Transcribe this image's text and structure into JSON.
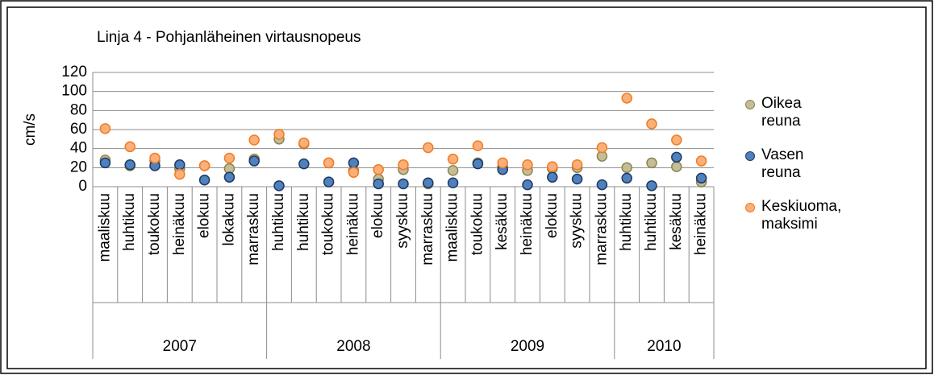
{
  "chart_data": {
    "type": "scatter",
    "title": "Linja 4 - Pohjanläheinen  virtausnopeus",
    "y_label": "cm/s",
    "categories": [
      "maaliskuu",
      "huhtikuu",
      "toukokuu",
      "heinäkuu",
      "elokuu",
      "lokakuu",
      "marraskuu",
      "huhtikuu",
      "huhtikuu",
      "toukokuu",
      "heinäkuu",
      "elokuu",
      "syyskuu",
      "marraskuu",
      "maaliskuu",
      "toukokuu",
      "kesäkuu",
      "heinäkuu",
      "elokuu",
      "syyskuu",
      "marraskuu",
      "huhtikuu",
      "huhtikuu",
      "kesäkuu",
      "heinäkuu"
    ],
    "category_groups": [
      {
        "label": "2007",
        "span": 7
      },
      {
        "label": "2008",
        "span": 7
      },
      {
        "label": "2009",
        "span": 7
      },
      {
        "label": "2010",
        "span": 4
      }
    ],
    "series": [
      {
        "name": "Oikea reuna",
        "color": "#c4bd97",
        "edge": "#8c8450",
        "values": [
          28,
          22,
          27,
          19,
          22,
          19,
          29,
          50,
          45,
          25,
          17,
          8,
          18,
          3,
          17,
          25,
          21,
          17,
          19,
          20,
          32,
          20,
          25,
          21,
          5
        ]
      },
      {
        "name": "Vasen reuna",
        "color": "#4f81bd",
        "edge": "#1f3864",
        "values": [
          25,
          23,
          22,
          23,
          7,
          10,
          27,
          1,
          24,
          5,
          25,
          3,
          3,
          4,
          4,
          24,
          18,
          2,
          10,
          8,
          2,
          9,
          1,
          31,
          9
        ]
      },
      {
        "name": "Keskiuoma, maksimi",
        "color": "#f9b07a",
        "edge": "#f57a1e",
        "values": [
          61,
          42,
          30,
          13,
          22,
          30,
          49,
          55,
          46,
          25,
          15,
          18,
          23,
          41,
          29,
          43,
          25,
          23,
          21,
          23,
          41,
          93,
          66,
          49,
          27
        ]
      }
    ],
    "ylim": [
      0,
      120
    ],
    "yticks": [
      0,
      20,
      40,
      60,
      80,
      100,
      120
    ],
    "grid": true
  }
}
